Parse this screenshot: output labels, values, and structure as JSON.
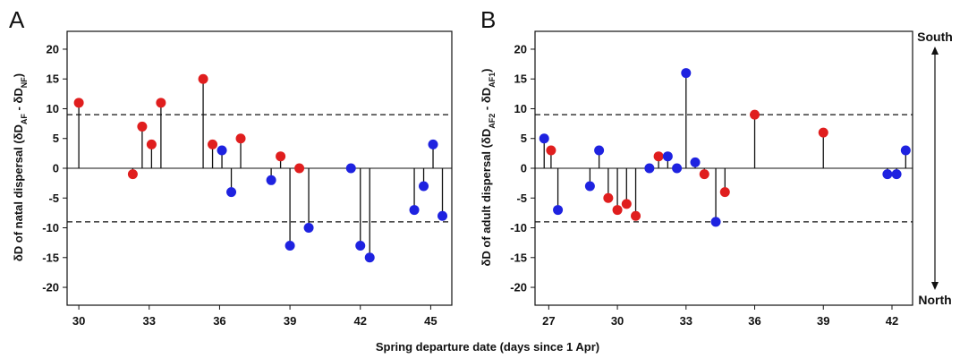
{
  "figure": {
    "xlabel": "Spring departure date (days since 1 Apr)",
    "north_label": "North",
    "south_label": "South"
  },
  "colors": {
    "red": "#e01e1e",
    "blue": "#1e22e0",
    "axis": "#111111"
  },
  "chart_data": [
    {
      "type": "scatter",
      "panel": "A",
      "ylabel_main": "δD of natal dispersal (δD",
      "ylabel_sub1": "AF",
      "ylabel_mid": " - δD",
      "ylabel_sub2": "NF",
      "ylabel_end": ")",
      "xlim": [
        29.5,
        45.9
      ],
      "ylim": [
        -23,
        23
      ],
      "xticks": [
        30,
        33,
        36,
        39,
        42,
        45
      ],
      "yticks": [
        -20,
        -15,
        -10,
        -5,
        0,
        5,
        10,
        15,
        20
      ],
      "thresholds": [
        9,
        -9
      ],
      "points": [
        {
          "x": 30.0,
          "y": 11,
          "group": "red"
        },
        {
          "x": 32.3,
          "y": -1,
          "group": "red"
        },
        {
          "x": 32.7,
          "y": 7,
          "group": "red"
        },
        {
          "x": 33.1,
          "y": 4,
          "group": "red"
        },
        {
          "x": 33.5,
          "y": 11,
          "group": "red"
        },
        {
          "x": 35.3,
          "y": 15,
          "group": "red"
        },
        {
          "x": 35.7,
          "y": 4,
          "group": "red"
        },
        {
          "x": 36.1,
          "y": 3,
          "group": "blue"
        },
        {
          "x": 36.5,
          "y": -4,
          "group": "blue"
        },
        {
          "x": 36.9,
          "y": 5,
          "group": "red"
        },
        {
          "x": 38.2,
          "y": -2,
          "group": "blue"
        },
        {
          "x": 38.6,
          "y": 2,
          "group": "red"
        },
        {
          "x": 39.0,
          "y": -13,
          "group": "blue"
        },
        {
          "x": 39.4,
          "y": 0,
          "group": "red"
        },
        {
          "x": 39.8,
          "y": -10,
          "group": "blue"
        },
        {
          "x": 41.6,
          "y": 0,
          "group": "blue"
        },
        {
          "x": 42.0,
          "y": -13,
          "group": "blue"
        },
        {
          "x": 42.4,
          "y": -15,
          "group": "blue"
        },
        {
          "x": 44.3,
          "y": -7,
          "group": "blue"
        },
        {
          "x": 44.7,
          "y": -3,
          "group": "blue"
        },
        {
          "x": 45.1,
          "y": 4,
          "group": "blue"
        },
        {
          "x": 45.5,
          "y": -8,
          "group": "blue"
        }
      ]
    },
    {
      "type": "scatter",
      "panel": "B",
      "ylabel_main": "δD of adult dispersal (δD",
      "ylabel_sub1": "AF2",
      "ylabel_mid": " - δD",
      "ylabel_sub2": "AF1",
      "ylabel_end": ")",
      "xlim": [
        26.4,
        42.9
      ],
      "ylim": [
        -23,
        23
      ],
      "xticks": [
        27,
        30,
        33,
        36,
        39,
        42
      ],
      "yticks": [
        -20,
        -15,
        -10,
        -5,
        0,
        5,
        10,
        15,
        20
      ],
      "thresholds": [
        9,
        -9
      ],
      "points": [
        {
          "x": 26.8,
          "y": 5,
          "group": "blue"
        },
        {
          "x": 27.1,
          "y": 3,
          "group": "red"
        },
        {
          "x": 27.4,
          "y": -7,
          "group": "blue"
        },
        {
          "x": 28.8,
          "y": -3,
          "group": "blue"
        },
        {
          "x": 29.2,
          "y": 3,
          "group": "blue"
        },
        {
          "x": 29.6,
          "y": -5,
          "group": "red"
        },
        {
          "x": 30.0,
          "y": -7,
          "group": "red"
        },
        {
          "x": 30.4,
          "y": -6,
          "group": "red"
        },
        {
          "x": 30.8,
          "y": -8,
          "group": "red"
        },
        {
          "x": 31.4,
          "y": 0,
          "group": "blue"
        },
        {
          "x": 31.8,
          "y": 2,
          "group": "red"
        },
        {
          "x": 32.2,
          "y": 2,
          "group": "blue"
        },
        {
          "x": 32.6,
          "y": 0,
          "group": "blue"
        },
        {
          "x": 33.0,
          "y": 16,
          "group": "blue"
        },
        {
          "x": 33.4,
          "y": 1,
          "group": "blue"
        },
        {
          "x": 33.8,
          "y": -1,
          "group": "red"
        },
        {
          "x": 34.3,
          "y": -9,
          "group": "blue"
        },
        {
          "x": 34.7,
          "y": -4,
          "group": "red"
        },
        {
          "x": 36.0,
          "y": 9,
          "group": "red"
        },
        {
          "x": 39.0,
          "y": 6,
          "group": "red"
        },
        {
          "x": 41.8,
          "y": -1,
          "group": "blue"
        },
        {
          "x": 42.2,
          "y": -1,
          "group": "blue"
        },
        {
          "x": 42.6,
          "y": 3,
          "group": "blue"
        }
      ]
    }
  ]
}
